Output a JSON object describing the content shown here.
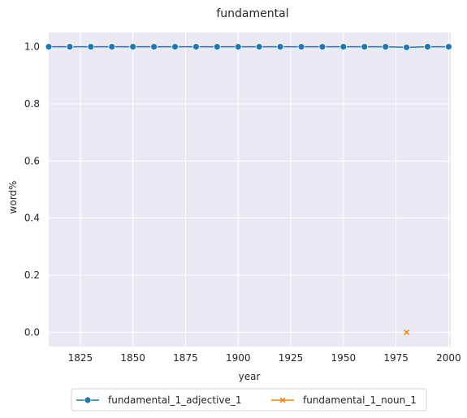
{
  "chart_data": {
    "type": "line",
    "title": "fundamental",
    "xlabel": "year",
    "ylabel": "word%",
    "xlim": [
      1810,
      2001
    ],
    "ylim": [
      -0.05,
      1.05
    ],
    "xticks": [
      1825,
      1850,
      1875,
      1900,
      1925,
      1950,
      1975,
      2000
    ],
    "yticks": [
      0.0,
      0.2,
      0.4,
      0.6,
      0.8,
      1.0
    ],
    "grid": true,
    "legend_position": "bottom-center",
    "series": [
      {
        "name": "fundamental_1_adjective_1",
        "color": "#1f77b4",
        "marker": "circle",
        "x": [
          1810,
          1820,
          1830,
          1840,
          1850,
          1860,
          1870,
          1880,
          1890,
          1900,
          1910,
          1920,
          1930,
          1940,
          1950,
          1960,
          1970,
          1980,
          1990,
          2000
        ],
        "y": [
          1.0,
          1.0,
          1.0,
          1.0,
          1.0,
          1.0,
          1.0,
          1.0,
          1.0,
          1.0,
          1.0,
          1.0,
          1.0,
          1.0,
          1.0,
          1.0,
          1.0,
          0.998,
          1.0,
          1.0
        ]
      },
      {
        "name": "fundamental_1_noun_1",
        "color": "#ff7f0e",
        "marker": "x",
        "x": [
          1980
        ],
        "y": [
          0.0
        ]
      }
    ]
  }
}
